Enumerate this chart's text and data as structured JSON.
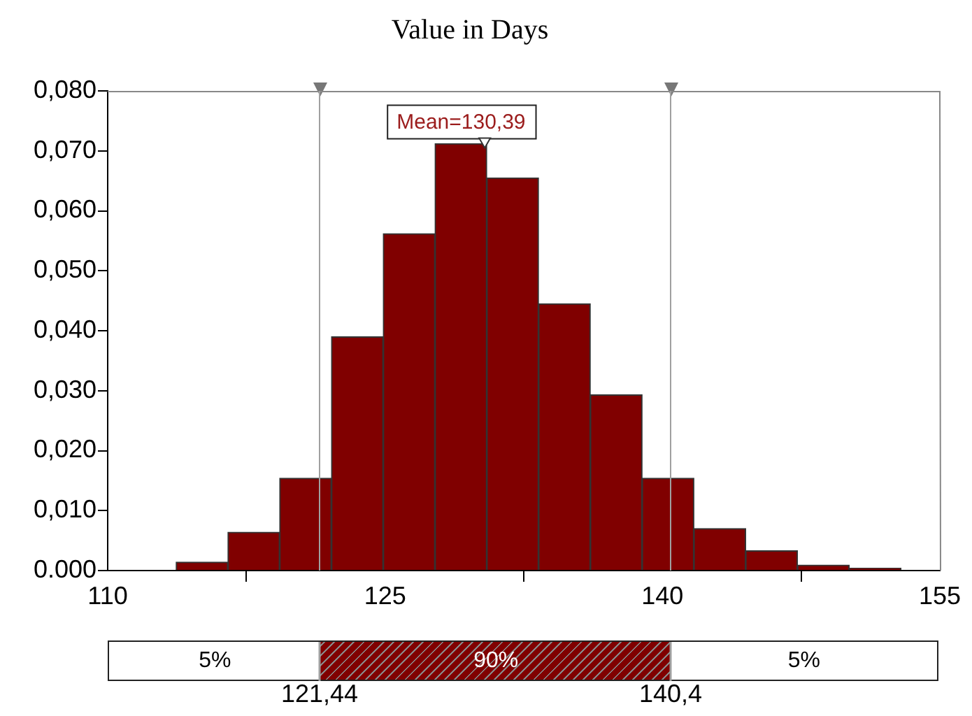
{
  "chart_data": {
    "type": "histogram",
    "title": "Value in Days",
    "bins": [
      113.7,
      116.5,
      119.3,
      122.1,
      124.9,
      127.7,
      130.5,
      133.3,
      136.1,
      138.9,
      141.7,
      144.5,
      147.3,
      150.1,
      152.9
    ],
    "values": [
      0.0014,
      0.0064,
      0.0154,
      0.039,
      0.0562,
      0.0712,
      0.0655,
      0.0445,
      0.0293,
      0.0154,
      0.007,
      0.0033,
      0.0009,
      0.0004
    ],
    "color": "#800000",
    "xlim": [
      110,
      155
    ],
    "xticks": [
      110,
      125,
      140,
      155
    ],
    "ylim": [
      0,
      0.08
    ],
    "yticks": [
      {
        "value": 0,
        "label": "0.000"
      },
      {
        "value": 0.01,
        "label": "0,010"
      },
      {
        "value": 0.02,
        "label": "0,020"
      },
      {
        "value": 0.03,
        "label": "0,030"
      },
      {
        "value": 0.04,
        "label": "0,040"
      },
      {
        "value": 0.05,
        "label": "0,050"
      },
      {
        "value": 0.06,
        "label": "0,060"
      },
      {
        "value": 0.07,
        "label": "0,070"
      },
      {
        "value": 0.08,
        "label": "0,080"
      }
    ],
    "grid": false,
    "legend": false,
    "ref_lines": [
      {
        "axis": "x",
        "value": 121.44,
        "color": "#a0a0a0"
      },
      {
        "axis": "x",
        "value": 140.4,
        "color": "#a0a0a0"
      }
    ],
    "annotations": [
      {
        "text": "Mean=130,39",
        "x": 130.39,
        "y": 0.0712
      },
      "5%",
      "90%",
      "5%",
      "121,44",
      "140,4"
    ]
  }
}
